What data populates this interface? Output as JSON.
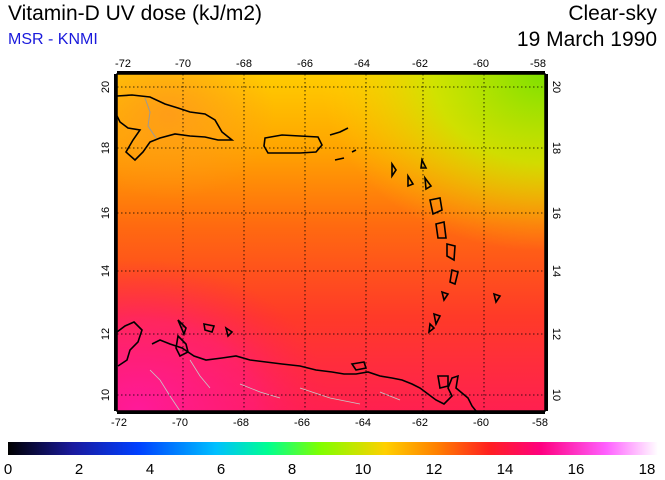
{
  "header": {
    "title": "Vitamin-D UV dose (kJ/m2)",
    "source": "MSR - KNMI",
    "sky": "Clear-sky",
    "date": "19 March 1990"
  },
  "map": {
    "lon_range": [
      -72,
      -58
    ],
    "lat_range": [
      9.5,
      20.5
    ],
    "lon_ticks": [
      "-72",
      "-70",
      "-68",
      "-66",
      "-64",
      "-62",
      "-60",
      "-58"
    ],
    "lat_ticks": [
      "10",
      "12",
      "14",
      "16",
      "18",
      "20"
    ],
    "graticule": "dotted",
    "field_colors": {
      "north_east": "#7fe000",
      "north_west": "#ffc000",
      "middle": "#ff6a00",
      "south": "#ff2a3a",
      "south_west": "#ff1f8c"
    }
  },
  "colorbar": {
    "min": 0,
    "max": 18,
    "ticks": [
      "0",
      "2",
      "4",
      "6",
      "8",
      "10",
      "12",
      "14",
      "16",
      "18"
    ],
    "colors": [
      "#000000",
      "#1a1a9e",
      "#0040ff",
      "#00c0ff",
      "#00ff90",
      "#80ff00",
      "#ffd000",
      "#ff8000",
      "#ff2020",
      "#ff0080",
      "#ff60ff",
      "#ffffff"
    ]
  }
}
